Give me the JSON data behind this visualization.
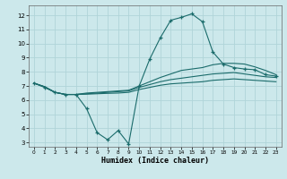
{
  "xlabel": "Humidex (Indice chaleur)",
  "bg_color": "#cce8eb",
  "line_color": "#1a6b6b",
  "grid_color": "#b0d4d8",
  "xlim": [
    -0.5,
    23.5
  ],
  "ylim": [
    2.7,
    12.7
  ],
  "xticks": [
    0,
    1,
    2,
    3,
    4,
    5,
    6,
    7,
    8,
    9,
    10,
    11,
    12,
    13,
    14,
    15,
    16,
    17,
    18,
    19,
    20,
    21,
    22,
    23
  ],
  "yticks": [
    3,
    4,
    5,
    6,
    7,
    8,
    9,
    10,
    11,
    12
  ],
  "line1_x": [
    0,
    1,
    2,
    3,
    4,
    5,
    6,
    7,
    8,
    9,
    10,
    11,
    12,
    13,
    14,
    15,
    16,
    17,
    18,
    19,
    20,
    21,
    22,
    23
  ],
  "line1_y": [
    7.2,
    6.9,
    6.55,
    6.4,
    6.4,
    5.4,
    3.7,
    3.2,
    3.85,
    2.9,
    7.0,
    8.9,
    10.4,
    11.65,
    11.85,
    12.1,
    11.55,
    9.4,
    8.55,
    8.3,
    8.2,
    8.15,
    7.8,
    7.7
  ],
  "line2_x": [
    0,
    1,
    2,
    3,
    4,
    5,
    6,
    7,
    8,
    9,
    10,
    11,
    12,
    13,
    14,
    15,
    16,
    17,
    18,
    19,
    20,
    21,
    22,
    23
  ],
  "line2_y": [
    7.2,
    6.95,
    6.55,
    6.4,
    6.4,
    6.5,
    6.55,
    6.6,
    6.65,
    6.7,
    7.0,
    7.3,
    7.6,
    7.85,
    8.1,
    8.2,
    8.3,
    8.5,
    8.6,
    8.6,
    8.55,
    8.35,
    8.1,
    7.8
  ],
  "line3_x": [
    0,
    1,
    2,
    3,
    4,
    5,
    6,
    7,
    8,
    9,
    10,
    11,
    12,
    13,
    14,
    15,
    16,
    17,
    18,
    19,
    20,
    21,
    22,
    23
  ],
  "line3_y": [
    7.2,
    6.95,
    6.55,
    6.4,
    6.4,
    6.45,
    6.5,
    6.55,
    6.6,
    6.65,
    6.9,
    7.1,
    7.3,
    7.45,
    7.55,
    7.65,
    7.75,
    7.85,
    7.9,
    7.95,
    7.85,
    7.75,
    7.65,
    7.6
  ],
  "line4_x": [
    0,
    1,
    2,
    3,
    4,
    5,
    6,
    7,
    8,
    9,
    10,
    11,
    12,
    13,
    14,
    15,
    16,
    17,
    18,
    19,
    20,
    21,
    22,
    23
  ],
  "line4_y": [
    7.2,
    6.95,
    6.55,
    6.4,
    6.4,
    6.42,
    6.45,
    6.48,
    6.5,
    6.55,
    6.75,
    6.9,
    7.05,
    7.15,
    7.2,
    7.25,
    7.3,
    7.4,
    7.45,
    7.5,
    7.45,
    7.4,
    7.35,
    7.3
  ]
}
